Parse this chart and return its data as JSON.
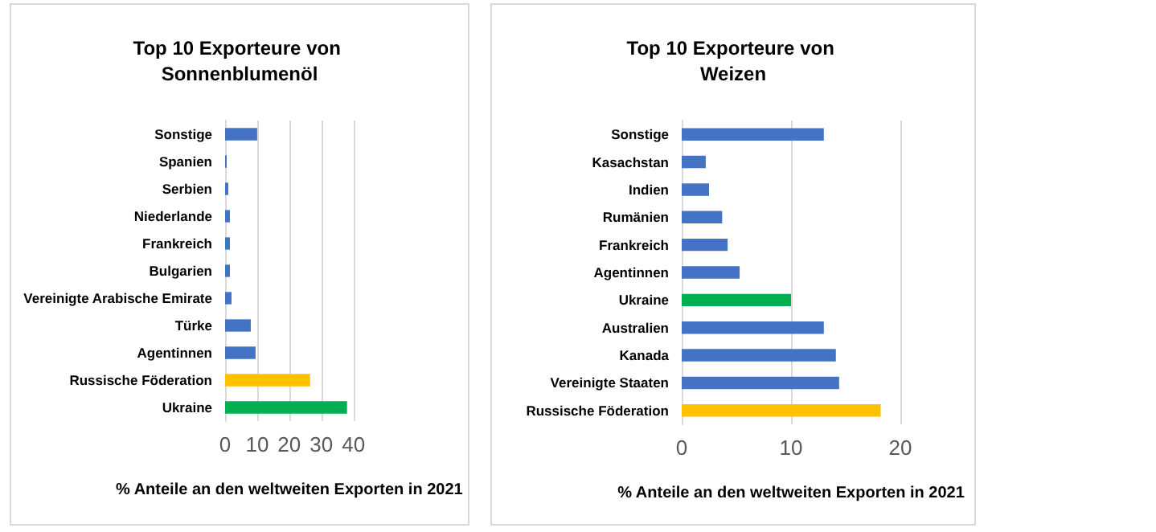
{
  "chart_data": [
    {
      "type": "bar",
      "orientation": "horizontal",
      "title": "Top 10 Exporteure von Sonnenblumenöl",
      "xlabel": "% Anteile an den weltweiten Exporten in 2021",
      "categories": [
        "Sonstige",
        "Spanien",
        "Serbien",
        "Niederlande",
        "Frankreich",
        "Bulgarien",
        "Vereinigte Arabische Emirate",
        "Türke",
        "Agentinnen",
        "Russische Föderation",
        "Ukraine"
      ],
      "values": [
        10,
        0.5,
        1,
        1.5,
        1.5,
        1.5,
        2,
        8,
        9.5,
        26.5,
        38
      ],
      "colors": [
        "#4472c4",
        "#4472c4",
        "#4472c4",
        "#4472c4",
        "#4472c4",
        "#4472c4",
        "#4472c4",
        "#4472c4",
        "#4472c4",
        "#ffc000",
        "#00b050"
      ],
      "xlim": [
        0,
        40
      ],
      "xticks": [
        0,
        10,
        20,
        30,
        40
      ],
      "grid": "x"
    },
    {
      "type": "bar",
      "orientation": "horizontal",
      "title": "Top 10 Exporteure von Weizen",
      "xlabel": "% Anteile an den weltweiten Exporten in 2021",
      "categories": [
        "Sonstige",
        "Kasachstan",
        "Indien",
        "Rumänien",
        "Frankreich",
        "Agentinnen",
        "Ukraine",
        "Australien",
        "Kanada",
        "Vereinigte Staaten",
        "Russische Föderation"
      ],
      "values": [
        13,
        2.2,
        2.5,
        3.7,
        4.2,
        5.3,
        10,
        13,
        14.1,
        14.4,
        18.2
      ],
      "colors": [
        "#4472c4",
        "#4472c4",
        "#4472c4",
        "#4472c4",
        "#4472c4",
        "#4472c4",
        "#00b050",
        "#4472c4",
        "#4472c4",
        "#4472c4",
        "#ffc000"
      ],
      "xlim": [
        0,
        20
      ],
      "xticks": [
        0,
        10,
        20
      ],
      "grid": "x"
    }
  ]
}
